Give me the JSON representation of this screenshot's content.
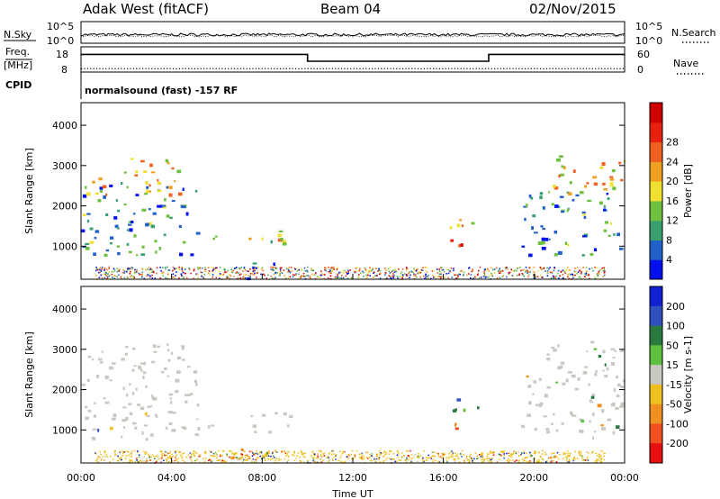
{
  "header": {
    "radar": "Adak West (fitACF)",
    "beam": "Beam 04",
    "date": "02/Nov/2015"
  },
  "chart_data": [
    {
      "type": "line",
      "panel": "noise",
      "left_label": "N.Sky",
      "right_label": "N.Search",
      "left_ticks": [
        "10^5",
        "10^0"
      ],
      "right_ticks": [
        "10^5",
        "10^0"
      ],
      "series": [
        {
          "name": "N.Sky"
        },
        {
          "name": "N.Search"
        }
      ]
    },
    {
      "type": "line",
      "panel": "frequency",
      "left_label_line1": "Freq.",
      "left_label_line2": "[MHz]",
      "right_label": "Nave",
      "left_ticks": [
        "18",
        "8"
      ],
      "right_ticks": [
        "60",
        "0"
      ],
      "ylim_left": [
        8,
        18
      ],
      "ylim_right": [
        0,
        60
      ],
      "freq_steps": [
        {
          "t": 0,
          "f": 15.0
        },
        {
          "t": 10,
          "f": 12.3
        },
        {
          "t": 18,
          "f": 15.0
        },
        {
          "t": 24,
          "f": 15.0
        }
      ],
      "nave_level": 8,
      "series": [
        {
          "name": "Freq."
        },
        {
          "name": "Nave"
        }
      ]
    },
    {
      "type": "text",
      "panel": "cpid",
      "label": "CPID",
      "text": "normalsound (fast) -157 RF"
    },
    {
      "type": "heatmap",
      "panel": "power",
      "ylabel": "Slant Range [km]",
      "yticks": [
        1000,
        2000,
        3000,
        4000
      ],
      "ylim": [
        180,
        4560
      ],
      "xlim": [
        0,
        24
      ],
      "colorbar_label": "Power [dB]",
      "colorbar_ticks": [
        4,
        8,
        12,
        16,
        20,
        24,
        28
      ],
      "colorbar_colors": [
        "#0010f0",
        "#2060c8",
        "#3aa070",
        "#70c040",
        "#f0e030",
        "#f0a020",
        "#f06020",
        "#e82010",
        "#d00000"
      ],
      "regions": [
        {
          "t0": 0.0,
          "t1": 5.2,
          "r0": 800,
          "r1": 2600,
          "level": 0.75
        },
        {
          "t0": 0.2,
          "t1": 4.5,
          "r0": 2300,
          "r1": 3200,
          "level": 0.45
        },
        {
          "t0": 5.5,
          "t1": 6.0,
          "r0": 1100,
          "r1": 1500,
          "level": 0.4
        },
        {
          "t0": 7.4,
          "t1": 9.2,
          "r0": 900,
          "r1": 1500,
          "level": 0.55
        },
        {
          "t0": 6.5,
          "t1": 8.6,
          "r0": 200,
          "r1": 600,
          "level": 0.8
        },
        {
          "t0": 16.1,
          "t1": 17.5,
          "r0": 1400,
          "r1": 1800,
          "level": 0.35
        },
        {
          "t0": 16.1,
          "t1": 17.5,
          "r0": 900,
          "r1": 1200,
          "level": 0.2
        },
        {
          "t0": 19.4,
          "t1": 24.0,
          "r0": 800,
          "r1": 2400,
          "level": 0.75
        },
        {
          "t0": 20.5,
          "t1": 24.0,
          "r0": 2300,
          "r1": 3300,
          "level": 0.45
        }
      ]
    },
    {
      "type": "heatmap",
      "panel": "velocity",
      "ylabel": "Slant Range [km]",
      "yticks": [
        1000,
        2000,
        3000,
        4000
      ],
      "ylim": [
        180,
        4560
      ],
      "xlim": [
        0,
        24
      ],
      "xticks": [
        "00:00",
        "04:00",
        "08:00",
        "12:00",
        "16:00",
        "20:00",
        "00:00"
      ],
      "xlabel": "Time UT",
      "colorbar_label": "Velocity [m s-1]",
      "colorbar_ticks": [
        200,
        100,
        50,
        15,
        -15,
        -50,
        -100,
        -200
      ],
      "colorbar_colors": [
        "#1020d0",
        "#3050c0",
        "#2a7a40",
        "#60c040",
        "#c8c8c0",
        "#f0c020",
        "#f09020",
        "#f05020",
        "#e81010"
      ],
      "regions": [
        {
          "t0": 0.0,
          "t1": 5.2,
          "r0": 800,
          "r1": 2600,
          "level": 0.5
        },
        {
          "t0": 0.2,
          "t1": 4.5,
          "r0": 2300,
          "r1": 3200,
          "level": 0.5
        },
        {
          "t0": 5.5,
          "t1": 6.0,
          "r0": 1100,
          "r1": 1500,
          "level": 0.5
        },
        {
          "t0": 7.4,
          "t1": 9.2,
          "r0": 900,
          "r1": 1500,
          "level": 0.5
        },
        {
          "t0": 6.5,
          "t1": 8.6,
          "r0": 200,
          "r1": 600,
          "level": 0.65
        },
        {
          "t0": 16.1,
          "t1": 17.5,
          "r0": 1400,
          "r1": 1800,
          "level": 0.3
        },
        {
          "t0": 16.1,
          "t1": 17.5,
          "r0": 900,
          "r1": 1200,
          "level": 0.75
        },
        {
          "t0": 19.4,
          "t1": 24.0,
          "r0": 800,
          "r1": 2400,
          "level": 0.5
        },
        {
          "t0": 20.5,
          "t1": 24.0,
          "r0": 2300,
          "r1": 3300,
          "level": 0.5
        }
      ]
    }
  ]
}
